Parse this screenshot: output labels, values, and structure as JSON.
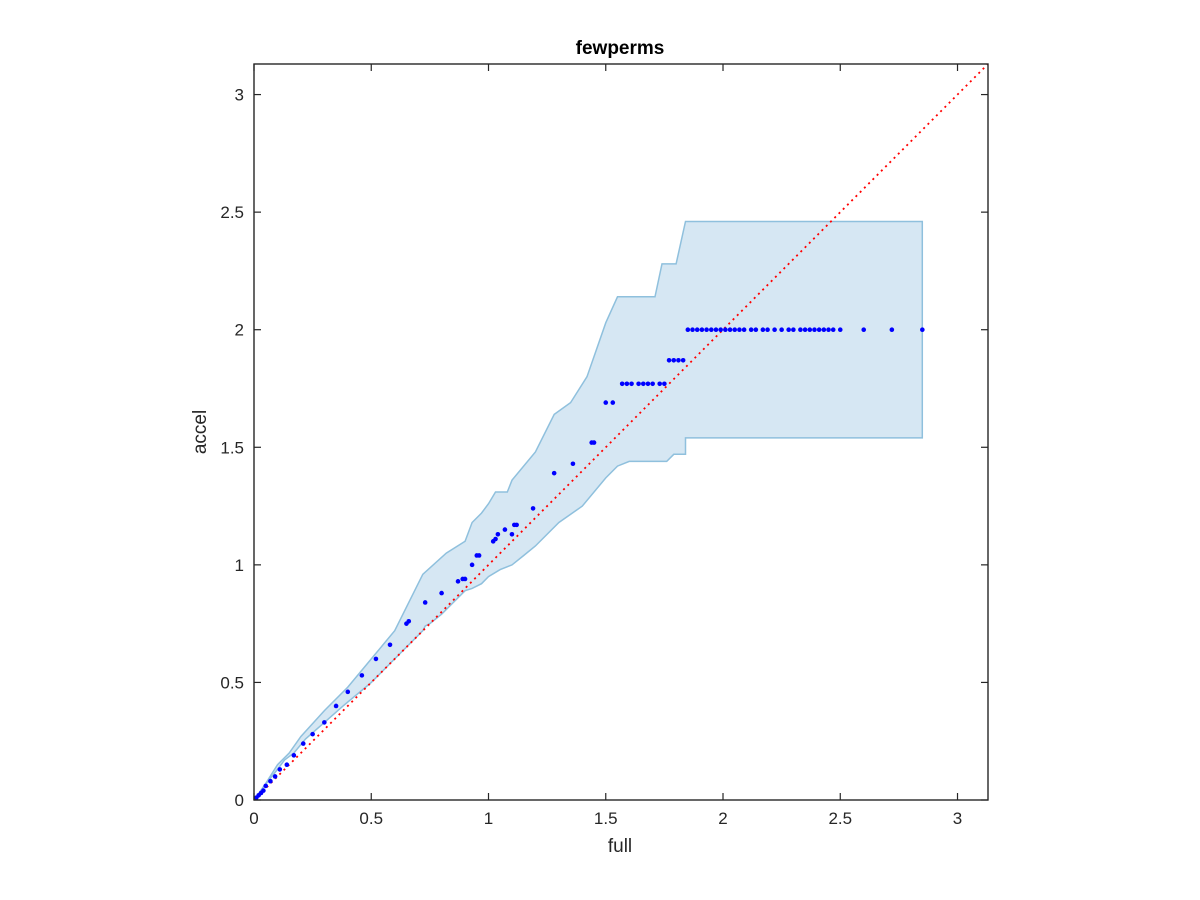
{
  "chart_data": {
    "type": "scatter",
    "title": "fewperms",
    "xlabel": "full",
    "ylabel": "accel",
    "xlim": [
      0,
      3.13
    ],
    "ylim": [
      0,
      3.13
    ],
    "xticks": [
      0,
      0.5,
      1,
      1.5,
      2,
      2.5,
      3
    ],
    "yticks": [
      0,
      0.5,
      1,
      1.5,
      2,
      2.5,
      3
    ],
    "xtick_labels": [
      "0",
      "0.5",
      "1",
      "1.5",
      "2",
      "2.5",
      "3"
    ],
    "ytick_labels": [
      "0",
      "0.5",
      "1",
      "1.5",
      "2",
      "2.5",
      "3"
    ],
    "grid": false,
    "box": true,
    "colors": {
      "points": "#0000ff",
      "band_fill": "#d6e7f3",
      "band_edge": "#8fc0dd",
      "reference_line": "#ff0000",
      "axes": "#262626"
    },
    "reference_line": {
      "style": "dotted",
      "from": [
        0,
        0
      ],
      "to": [
        3.13,
        3.13
      ]
    },
    "band": {
      "upper": [
        [
          0,
          0
        ],
        [
          0.03,
          0.04
        ],
        [
          0.06,
          0.08
        ],
        [
          0.1,
          0.13
        ],
        [
          0.13,
          0.17
        ],
        [
          0.17,
          0.2
        ],
        [
          0.22,
          0.26
        ],
        [
          0.3,
          0.33
        ],
        [
          0.38,
          0.4
        ],
        [
          0.5,
          0.5
        ],
        [
          0.6,
          0.6
        ],
        [
          0.72,
          0.72
        ],
        [
          0.73,
          0.74
        ],
        [
          0.75,
          0.75
        ],
        [
          0.8,
          0.79
        ],
        [
          0.86,
          0.85
        ],
        [
          0.9,
          0.89
        ],
        [
          0.93,
          0.9
        ],
        [
          0.97,
          0.92
        ],
        [
          1.0,
          0.95
        ],
        [
          1.05,
          0.98
        ],
        [
          1.1,
          1.0
        ],
        [
          1.15,
          1.04
        ],
        [
          1.2,
          1.08
        ],
        [
          1.3,
          1.18
        ],
        [
          1.4,
          1.25
        ],
        [
          1.5,
          1.37
        ],
        [
          1.55,
          1.42
        ],
        [
          1.6,
          1.44
        ],
        [
          1.7,
          1.44
        ],
        [
          1.76,
          1.44
        ],
        [
          1.79,
          1.47
        ],
        [
          1.84,
          1.47
        ],
        [
          1.84,
          1.54
        ],
        [
          2.85,
          1.54
        ]
      ],
      "lower_reverse_note": "",
      "top": [
        [
          0,
          0
        ],
        [
          0.05,
          0.07
        ],
        [
          0.1,
          0.15
        ],
        [
          0.15,
          0.2
        ],
        [
          0.2,
          0.27
        ],
        [
          0.3,
          0.38
        ],
        [
          0.4,
          0.48
        ],
        [
          0.5,
          0.6
        ],
        [
          0.6,
          0.72
        ],
        [
          0.72,
          0.96
        ],
        [
          0.82,
          1.05
        ],
        [
          0.9,
          1.1
        ],
        [
          0.93,
          1.18
        ],
        [
          0.97,
          1.22
        ],
        [
          1.0,
          1.26
        ],
        [
          1.03,
          1.31
        ],
        [
          1.08,
          1.31
        ],
        [
          1.1,
          1.36
        ],
        [
          1.2,
          1.48
        ],
        [
          1.28,
          1.64
        ],
        [
          1.35,
          1.69
        ],
        [
          1.42,
          1.8
        ],
        [
          1.5,
          2.03
        ],
        [
          1.55,
          2.14
        ],
        [
          1.63,
          2.14
        ],
        [
          1.71,
          2.14
        ],
        [
          1.74,
          2.28
        ],
        [
          1.8,
          2.28
        ],
        [
          1.84,
          2.46
        ],
        [
          2.85,
          2.46
        ]
      ]
    },
    "points": [
      [
        0.01,
        0.01
      ],
      [
        0.02,
        0.02
      ],
      [
        0.03,
        0.03
      ],
      [
        0.04,
        0.04
      ],
      [
        0.05,
        0.06
      ],
      [
        0.07,
        0.08
      ],
      [
        0.09,
        0.1
      ],
      [
        0.11,
        0.13
      ],
      [
        0.14,
        0.15
      ],
      [
        0.17,
        0.19
      ],
      [
        0.21,
        0.24
      ],
      [
        0.25,
        0.28
      ],
      [
        0.3,
        0.33
      ],
      [
        0.35,
        0.4
      ],
      [
        0.4,
        0.46
      ],
      [
        0.46,
        0.53
      ],
      [
        0.52,
        0.6
      ],
      [
        0.58,
        0.66
      ],
      [
        0.65,
        0.75
      ],
      [
        0.66,
        0.76
      ],
      [
        0.73,
        0.84
      ],
      [
        0.8,
        0.88
      ],
      [
        0.87,
        0.93
      ],
      [
        0.89,
        0.94
      ],
      [
        0.9,
        0.94
      ],
      [
        0.93,
        1.0
      ],
      [
        0.95,
        1.04
      ],
      [
        0.96,
        1.04
      ],
      [
        1.02,
        1.1
      ],
      [
        1.03,
        1.11
      ],
      [
        1.04,
        1.13
      ],
      [
        1.07,
        1.15
      ],
      [
        1.1,
        1.13
      ],
      [
        1.11,
        1.17
      ],
      [
        1.12,
        1.17
      ],
      [
        1.19,
        1.24
      ],
      [
        1.28,
        1.39
      ],
      [
        1.36,
        1.43
      ],
      [
        1.44,
        1.52
      ],
      [
        1.45,
        1.52
      ],
      [
        1.5,
        1.69
      ],
      [
        1.53,
        1.69
      ],
      [
        1.57,
        1.77
      ],
      [
        1.59,
        1.77
      ],
      [
        1.61,
        1.77
      ],
      [
        1.64,
        1.77
      ],
      [
        1.66,
        1.77
      ],
      [
        1.68,
        1.77
      ],
      [
        1.7,
        1.77
      ],
      [
        1.73,
        1.77
      ],
      [
        1.75,
        1.77
      ],
      [
        1.77,
        1.87
      ],
      [
        1.79,
        1.87
      ],
      [
        1.81,
        1.87
      ],
      [
        1.83,
        1.87
      ],
      [
        1.85,
        2.0
      ],
      [
        1.87,
        2.0
      ],
      [
        1.89,
        2.0
      ],
      [
        1.91,
        2.0
      ],
      [
        1.93,
        2.0
      ],
      [
        1.95,
        2.0
      ],
      [
        1.97,
        2.0
      ],
      [
        1.99,
        2.0
      ],
      [
        2.01,
        2.0
      ],
      [
        2.03,
        2.0
      ],
      [
        2.05,
        2.0
      ],
      [
        2.07,
        2.0
      ],
      [
        2.09,
        2.0
      ],
      [
        2.12,
        2.0
      ],
      [
        2.14,
        2.0
      ],
      [
        2.17,
        2.0
      ],
      [
        2.19,
        2.0
      ],
      [
        2.22,
        2.0
      ],
      [
        2.25,
        2.0
      ],
      [
        2.28,
        2.0
      ],
      [
        2.3,
        2.0
      ],
      [
        2.33,
        2.0
      ],
      [
        2.35,
        2.0
      ],
      [
        2.37,
        2.0
      ],
      [
        2.39,
        2.0
      ],
      [
        2.41,
        2.0
      ],
      [
        2.43,
        2.0
      ],
      [
        2.45,
        2.0
      ],
      [
        2.47,
        2.0
      ],
      [
        2.5,
        2.0
      ],
      [
        2.6,
        2.0
      ],
      [
        2.72,
        2.0
      ],
      [
        2.85,
        2.0
      ]
    ]
  }
}
